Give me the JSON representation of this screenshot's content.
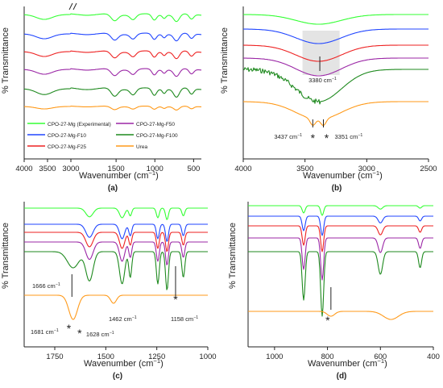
{
  "figure": {
    "panel_labels": [
      "(a)",
      "(b)",
      "(c)",
      "(d)"
    ],
    "ylabel": "% Transmittance",
    "xlabel_prefix": "Wavenumber (cm",
    "xlabel_suffix": ")",
    "xlabel_sup": "−1"
  },
  "colors": {
    "green": "#33ff33",
    "blue": "#2146ff",
    "red": "#ee2222",
    "purple": "#9b27a6",
    "darkgreen": "#1f8a1f",
    "orange": "#ff9a1a",
    "highlight": "#d9d9d9"
  },
  "chart_data": [
    {
      "panel": "(a)",
      "type": "line",
      "xlabel": "Wavenumber (cm−1)",
      "ylabel": "% Transmittance",
      "x_reversed": true,
      "broken_axis": true,
      "xlim": [
        4000,
        400
      ],
      "x_ticks": [
        4000,
        3500,
        3000,
        1500,
        1000,
        500
      ],
      "x_tick_labels": [
        "4000",
        "3500",
        "3000",
        "1500",
        "1000",
        "500"
      ],
      "legend": {
        "placement": "bottom-inside",
        "entries": [
          "CPO-27-Mg (Experimental)",
          "CPO-27-Mg-F50",
          "CPO-27-Mg-F10",
          "CPO-27-Mg-F100",
          "CPO-27-Mg-F25",
          "Urea"
        ]
      },
      "series": [
        {
          "name": "CPO-27-Mg (Experimental)",
          "color": "green"
        },
        {
          "name": "CPO-27-Mg-F10",
          "color": "blue"
        },
        {
          "name": "CPO-27-Mg-F25",
          "color": "red"
        },
        {
          "name": "CPO-27-Mg-F50",
          "color": "purple"
        },
        {
          "name": "CPO-27-Mg-F100",
          "color": "darkgreen"
        },
        {
          "name": "Urea",
          "color": "orange"
        }
      ]
    },
    {
      "panel": "(b)",
      "type": "line",
      "xlabel": "Wavenumber (cm−1)",
      "ylabel": "% Transmittance",
      "x_reversed": true,
      "xlim": [
        4000,
        2500
      ],
      "x_ticks": [
        4000,
        3500,
        3000,
        2500
      ],
      "x_tick_labels": [
        "4000",
        "3500",
        "3000",
        "2500"
      ],
      "annotations": [
        {
          "text": "3380 cm",
          "sup": "−1",
          "x": 3380
        },
        {
          "text": "3437 cm",
          "sup": "−1",
          "x": 3437,
          "star": true
        },
        {
          "text": "3351 cm",
          "sup": "−1",
          "x": 3351,
          "star": true
        }
      ],
      "highlight_range": [
        3520,
        3220
      ]
    },
    {
      "panel": "(c)",
      "type": "line",
      "xlabel": "Wavenumber (cm−1)",
      "ylabel": "% Transmittance",
      "x_reversed": true,
      "xlim": [
        1900,
        1000
      ],
      "x_ticks": [
        1750,
        1500,
        1250,
        1000
      ],
      "x_tick_labels": [
        "1750",
        "1500",
        "1250",
        "1000"
      ],
      "annotations": [
        {
          "text": "1666 cm",
          "sup": "−1",
          "x": 1666
        },
        {
          "text": "1681 cm",
          "sup": "−1",
          "x": 1681,
          "star": true
        },
        {
          "text": "1628 cm",
          "sup": "−1",
          "x": 1628,
          "star": true
        },
        {
          "text": "1462 cm",
          "sup": "−1",
          "x": 1462
        },
        {
          "text": "1158 cm",
          "sup": "−1",
          "x": 1158,
          "star": true
        }
      ]
    },
    {
      "panel": "(d)",
      "type": "line",
      "xlabel": "Wavenumber (cm−1)",
      "ylabel": "% Transmittance",
      "x_reversed": true,
      "xlim": [
        1100,
        400
      ],
      "x_ticks": [
        1000,
        800,
        600,
        400
      ],
      "x_tick_labels": [
        "1000",
        "800",
        "600",
        "400"
      ],
      "annotations": [
        {
          "text": "",
          "x": 787,
          "star": true
        }
      ]
    }
  ]
}
